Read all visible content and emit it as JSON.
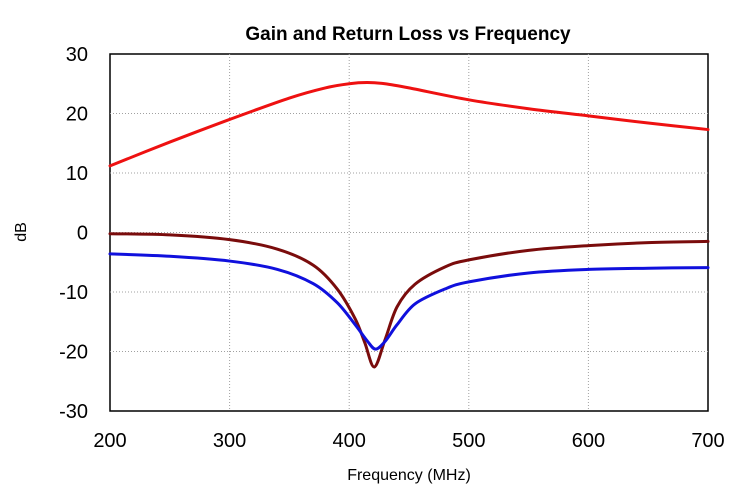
{
  "chart_data": {
    "type": "line",
    "title": "Gain and Return Loss vs Frequency",
    "xlabel": "Frequency (MHz)",
    "ylabel": "dB",
    "xlim": [
      200,
      700
    ],
    "ylim": [
      -30,
      30
    ],
    "xticks": [
      200,
      300,
      400,
      500,
      600,
      700
    ],
    "yticks": [
      30,
      20,
      10,
      0,
      -10,
      -20,
      -30
    ],
    "grid": true,
    "series": [
      {
        "color": "#ee1111",
        "x": [
          200,
          250,
          300,
          350,
          380,
          400,
          415,
          430,
          450,
          500,
          550,
          600,
          650,
          700
        ],
        "y": [
          11.2,
          15.2,
          19.0,
          22.6,
          24.3,
          25.0,
          25.2,
          25.0,
          24.3,
          22.3,
          20.8,
          19.6,
          18.4,
          17.3
        ]
      },
      {
        "color": "#7a0c0c",
        "x": [
          200,
          250,
          300,
          340,
          370,
          390,
          405,
          413,
          421,
          430,
          440,
          455,
          480,
          500,
          550,
          600,
          650,
          700
        ],
        "y": [
          -0.2,
          -0.4,
          -1.2,
          -2.8,
          -5.5,
          -9.5,
          -14.5,
          -18.5,
          -22.6,
          -18.0,
          -12.5,
          -8.7,
          -5.8,
          -4.6,
          -3.0,
          -2.2,
          -1.7,
          -1.5
        ]
      },
      {
        "color": "#1010dd",
        "x": [
          200,
          250,
          300,
          340,
          370,
          390,
          405,
          415,
          422,
          430,
          440,
          455,
          480,
          500,
          550,
          600,
          650,
          700
        ],
        "y": [
          -3.6,
          -4.0,
          -4.8,
          -6.2,
          -8.6,
          -11.8,
          -15.5,
          -18.2,
          -19.6,
          -18.3,
          -15.5,
          -12.0,
          -9.5,
          -8.3,
          -6.8,
          -6.2,
          -6.0,
          -5.9
        ]
      }
    ]
  }
}
